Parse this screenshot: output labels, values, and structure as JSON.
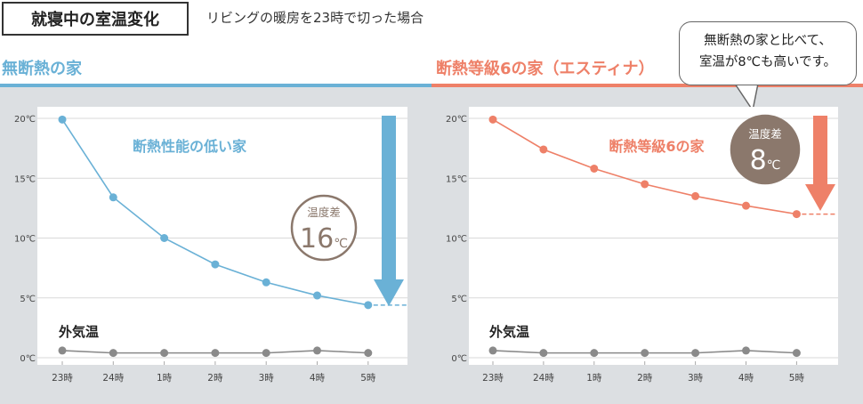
{
  "header": {
    "title": "就寝中の室温変化",
    "subtitle": "リビングの暖房を23時で切った場合"
  },
  "callout": {
    "line1": "無断熱の家と比べて、",
    "line2": "室温が8℃も高いです。"
  },
  "colors": {
    "left_accent": "#6ab1d6",
    "right_accent": "#ee8068",
    "outdoor": "#8a8a8a",
    "badge": "#8b786c"
  },
  "chart_data": [
    {
      "type": "line",
      "section_title": "無断熱の家",
      "x": [
        "23時",
        "24時",
        "1時",
        "2時",
        "3時",
        "4時",
        "5時"
      ],
      "yticks": [
        "0℃",
        "5℃",
        "10℃",
        "15℃",
        "20℃"
      ],
      "ylim": [
        0,
        20
      ],
      "series": [
        {
          "name": "断熱性能の低い家",
          "values": [
            19.9,
            13.4,
            10.0,
            7.8,
            6.3,
            5.2,
            4.4
          ]
        },
        {
          "name": "外気温",
          "values": [
            0.6,
            0.4,
            0.4,
            0.4,
            0.4,
            0.6,
            0.4
          ]
        }
      ],
      "badge": {
        "label": "温度差",
        "value": "16",
        "unit": "℃"
      }
    },
    {
      "type": "line",
      "section_title": "断熱等級6の家（エスティナ）",
      "x": [
        "23時",
        "24時",
        "1時",
        "2時",
        "3時",
        "4時",
        "5時"
      ],
      "yticks": [
        "0℃",
        "5℃",
        "10℃",
        "15℃",
        "20℃"
      ],
      "ylim": [
        0,
        20
      ],
      "series": [
        {
          "name": "断熱等級6の家",
          "values": [
            19.9,
            17.4,
            15.8,
            14.5,
            13.5,
            12.7,
            12.0
          ]
        },
        {
          "name": "外気温",
          "values": [
            0.6,
            0.4,
            0.4,
            0.4,
            0.4,
            0.6,
            0.4
          ]
        }
      ],
      "badge": {
        "label": "温度差",
        "value": "8",
        "unit": "℃"
      }
    }
  ]
}
